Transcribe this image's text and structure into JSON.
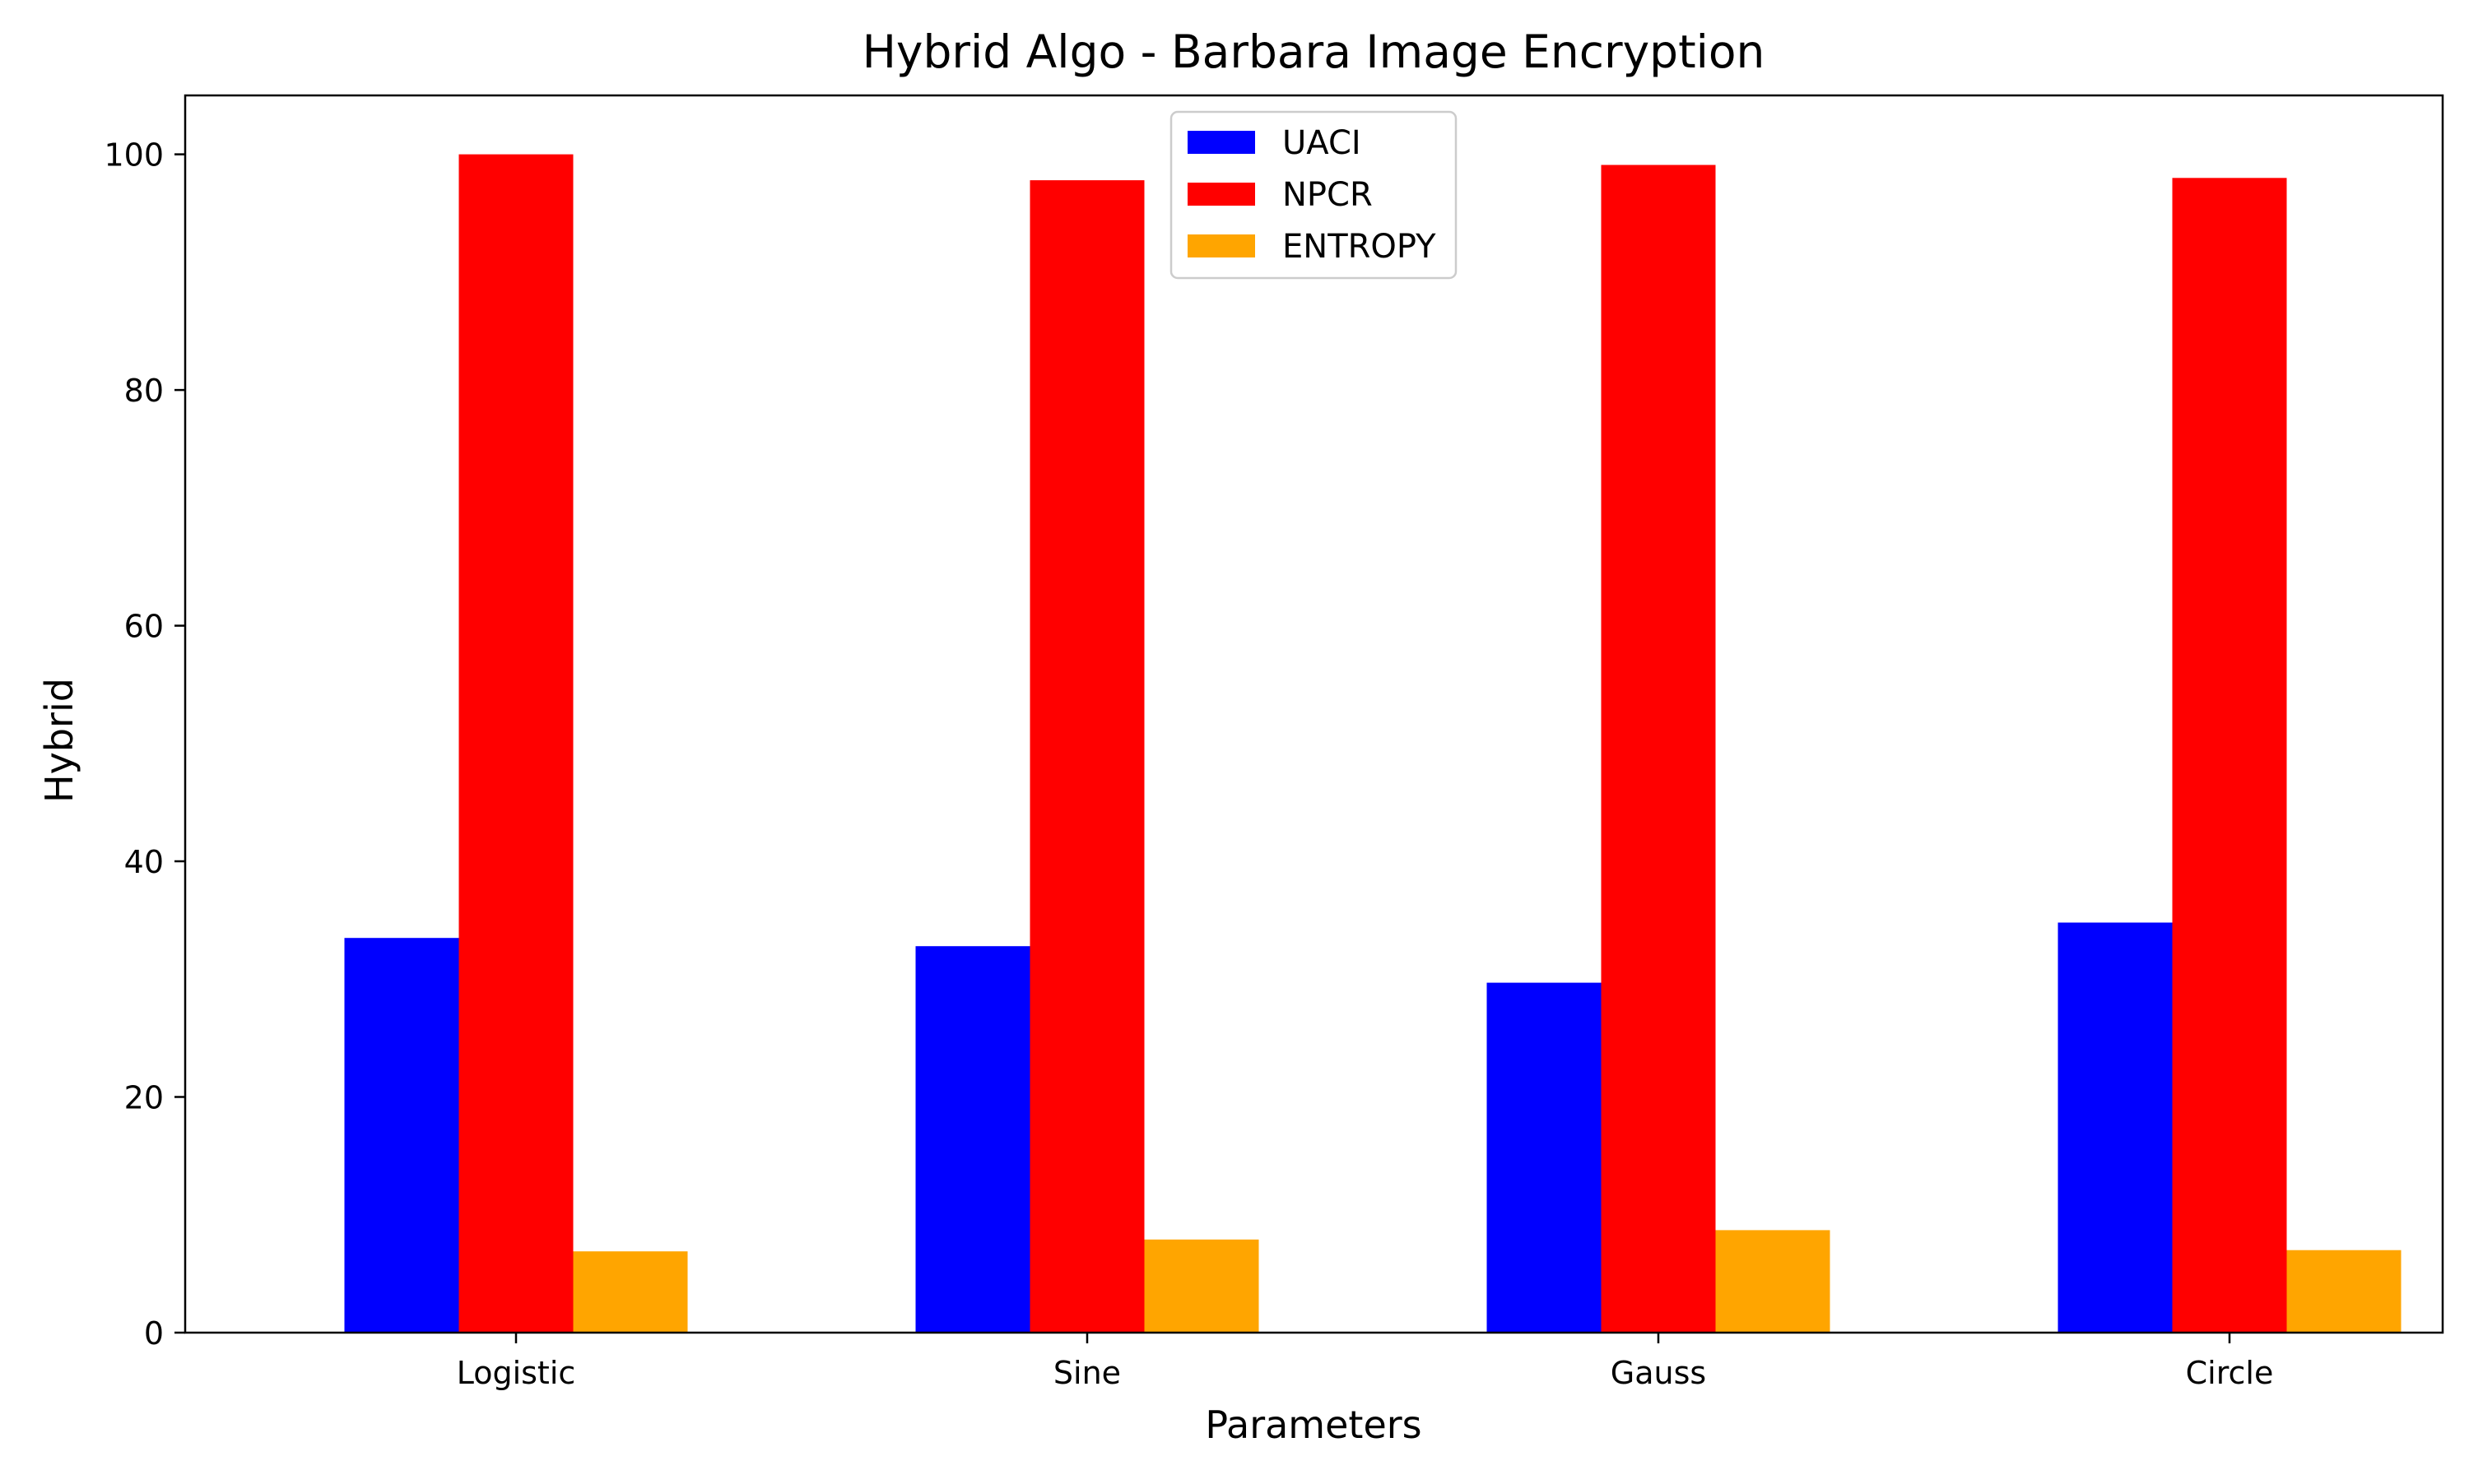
{
  "chart_data": {
    "type": "bar",
    "title": "Hybrid Algo - Barbara Image Encryption",
    "xlabel": "Parameters",
    "ylabel": "Hybrid",
    "categories": [
      "Logistic",
      "Sine",
      "Gauss",
      "Circle"
    ],
    "series": [
      {
        "name": "UACI",
        "color": "#0000ff",
        "values": [
          33.5,
          32.8,
          29.7,
          34.8
        ]
      },
      {
        "name": "NPCR",
        "color": "#ff0000",
        "values": [
          100.0,
          97.8,
          99.1,
          98.0
        ]
      },
      {
        "name": "ENTROPY",
        "color": "#ffa500",
        "values": [
          6.9,
          7.9,
          8.7,
          7.0
        ]
      }
    ],
    "ylim": [
      0,
      105
    ],
    "yticks": [
      "0",
      "20",
      "40",
      "60",
      "80",
      "100"
    ],
    "grid": false,
    "legend_position": "top-center"
  }
}
